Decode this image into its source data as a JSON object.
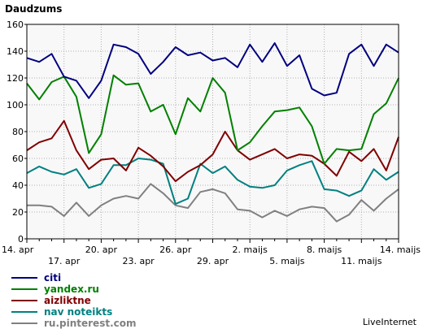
{
  "chart_data": {
    "type": "line",
    "title": "Daudzums",
    "credit": "LiveInternet",
    "xlabel": "",
    "ylabel": "",
    "ylim": [
      0,
      160
    ],
    "yticks": [
      0,
      20,
      40,
      60,
      80,
      100,
      120,
      140,
      160
    ],
    "grid": true,
    "legend_position": "bottom-left",
    "x_tick_labels_row1": [
      {
        "index": 0,
        "label": "14. apr"
      },
      {
        "index": 6,
        "label": "20. apr"
      },
      {
        "index": 12,
        "label": "26. apr"
      },
      {
        "index": 18,
        "label": "2. maijs"
      },
      {
        "index": 24,
        "label": "8. maijs"
      },
      {
        "index": 30,
        "label": "14. maijs"
      }
    ],
    "x_tick_labels_row2": [
      {
        "index": 3,
        "label": "17. apr"
      },
      {
        "index": 9,
        "label": "23. apr"
      },
      {
        "index": 15,
        "label": "29. apr"
      },
      {
        "index": 21,
        "label": "5. maijs"
      },
      {
        "index": 27,
        "label": "11. maijs"
      }
    ],
    "series": [
      {
        "name": "citi",
        "color": "#000080",
        "values": [
          135,
          132,
          138,
          121,
          118,
          105,
          118,
          145,
          143,
          138,
          123,
          132,
          143,
          137,
          139,
          133,
          135,
          128,
          145,
          132,
          146,
          129,
          137,
          112,
          107,
          109,
          138,
          145,
          129,
          145,
          139
        ]
      },
      {
        "name": "yandex.ru",
        "color": "#008000",
        "values": [
          116,
          104,
          117,
          121,
          106,
          64,
          78,
          122,
          115,
          116,
          95,
          100,
          78,
          105,
          95,
          120,
          109,
          66,
          72,
          84,
          95,
          96,
          98,
          84,
          56,
          67,
          66,
          67,
          93,
          101,
          120
        ]
      },
      {
        "name": "aizliktne",
        "color": "#800000",
        "values": [
          66,
          72,
          75,
          88,
          66,
          52,
          59,
          60,
          51,
          68,
          62,
          54,
          43,
          50,
          55,
          63,
          80,
          66,
          59,
          63,
          67,
          60,
          63,
          62,
          56,
          47,
          65,
          58,
          67,
          51,
          76
        ]
      },
      {
        "name": "nav noteikts",
        "color": "#008080",
        "values": [
          49,
          54,
          50,
          48,
          52,
          38,
          41,
          55,
          55,
          60,
          59,
          56,
          26,
          30,
          56,
          49,
          54,
          44,
          39,
          38,
          40,
          51,
          55,
          58,
          37,
          36,
          32,
          36,
          52,
          44,
          50
        ]
      },
      {
        "name": "ru.pinterest.com",
        "color": "#808080",
        "values": [
          25,
          25,
          24,
          17,
          27,
          17,
          25,
          30,
          32,
          30,
          41,
          34,
          25,
          23,
          35,
          37,
          34,
          22,
          21,
          16,
          21,
          17,
          22,
          24,
          23,
          13,
          18,
          29,
          21,
          30,
          37
        ]
      }
    ]
  }
}
